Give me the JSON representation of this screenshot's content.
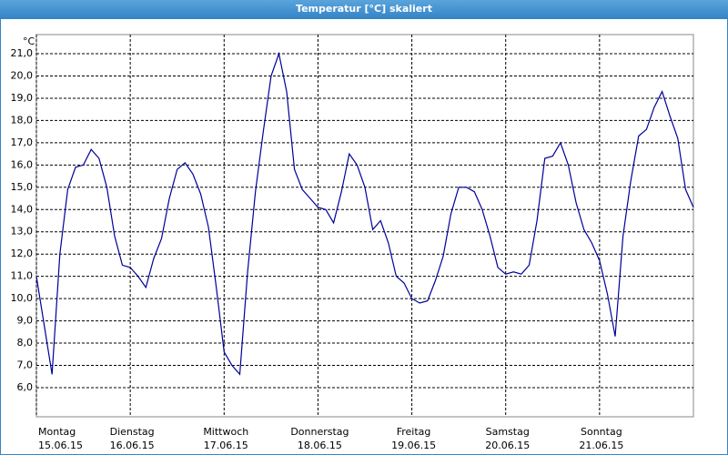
{
  "chart_data": {
    "type": "line",
    "title": "Temperatur [°C] skaliert",
    "ylabel": "°C",
    "series": [
      {
        "name": "Temperatur",
        "color": "#000099",
        "values": [
          11.0,
          8.8,
          6.6,
          12.0,
          14.9,
          15.9,
          16.0,
          16.7,
          16.3,
          15.0,
          12.8,
          11.5,
          11.4,
          11.0,
          10.5,
          11.8,
          12.7,
          14.5,
          15.8,
          16.1,
          15.6,
          14.7,
          13.2,
          10.5,
          7.6,
          7.0,
          6.6,
          11.2,
          14.8,
          17.5,
          20.0,
          21.0,
          19.3,
          15.8,
          14.9,
          14.5,
          14.1,
          14.0,
          13.4,
          14.8,
          16.5,
          16.0,
          15.0,
          13.1,
          13.5,
          12.5,
          11.0,
          10.7,
          10.0,
          9.8,
          9.9,
          10.8,
          11.9,
          13.8,
          15.0,
          15.0,
          14.8,
          14.0,
          12.8,
          11.4,
          11.1,
          11.2,
          11.1,
          11.5,
          13.5,
          16.3,
          16.4,
          17.0,
          16.0,
          14.3,
          13.1,
          12.5,
          11.7,
          10.2,
          8.3,
          12.8,
          15.3,
          17.3,
          17.6,
          18.6,
          19.3,
          18.2,
          17.2,
          14.9,
          14.1
        ]
      }
    ],
    "xlim": [
      0,
      84
    ],
    "xticks": [
      {
        "value": 0,
        "label": "Montag",
        "date": "15.06.15"
      },
      {
        "value": 12,
        "label": "Dienstag",
        "date": "16.06.15"
      },
      {
        "value": 24,
        "label": "Mittwoch",
        "date": "17.06.15"
      },
      {
        "value": 36,
        "label": "Donnerstag",
        "date": "18.06.15"
      },
      {
        "value": 48,
        "label": "Freitag",
        "date": "19.06.15"
      },
      {
        "value": 60,
        "label": "Samstag",
        "date": "20.06.15"
      },
      {
        "value": 72,
        "label": "Sonntag",
        "date": "21.06.15"
      }
    ],
    "ylim": [
      4.69,
      21.86
    ],
    "yticks": [
      {
        "value": 6,
        "label": "6,0"
      },
      {
        "value": 7,
        "label": "7,0"
      },
      {
        "value": 8,
        "label": "8,0"
      },
      {
        "value": 9,
        "label": "9,0"
      },
      {
        "value": 10,
        "label": "10,0"
      },
      {
        "value": 11,
        "label": "11,0"
      },
      {
        "value": 12,
        "label": "12,0"
      },
      {
        "value": 13,
        "label": "13,0"
      },
      {
        "value": 14,
        "label": "14,0"
      },
      {
        "value": 15,
        "label": "15,0"
      },
      {
        "value": 16,
        "label": "16,0"
      },
      {
        "value": 17,
        "label": "17,0"
      },
      {
        "value": 18,
        "label": "18,0"
      },
      {
        "value": 19,
        "label": "19,0"
      },
      {
        "value": 20,
        "label": "20,0"
      },
      {
        "value": 21,
        "label": "21,0"
      }
    ],
    "grid": true
  }
}
